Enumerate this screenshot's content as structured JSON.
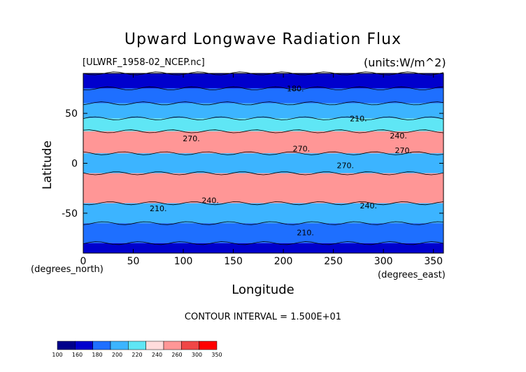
{
  "chart_data": {
    "type": "heatmap",
    "title": "Upward Longwave Radiation Flux",
    "subtitle_left": "[ULWRF_1958-02_NCEP.nc]",
    "subtitle_right": "(units:W/m^2)",
    "xlabel": "Longitude",
    "ylabel": "Latitude",
    "x_unit_label": "(degrees_east)",
    "y_unit_label": "(degrees_north)",
    "xlim": [
      0,
      360
    ],
    "ylim": [
      -90,
      90
    ],
    "x_ticks": [
      0,
      50,
      100,
      150,
      200,
      250,
      300,
      350
    ],
    "y_ticks": [
      50,
      0,
      -50
    ],
    "contour_interval_text": "CONTOUR INTERVAL = 1.500E+01",
    "colorbar": {
      "levels": [
        100,
        160,
        180,
        200,
        220,
        240,
        260,
        300,
        350
      ],
      "colors": [
        "#00008b",
        "#0000cd",
        "#1e6fff",
        "#3cb4ff",
        "#5fe6f5",
        "#ffdcdc",
        "#ff9696",
        "#f04646",
        "#ff0000"
      ]
    },
    "contour_labels": [
      {
        "text": "180.",
        "lon": 212,
        "lat": 72
      },
      {
        "text": "210.",
        "lon": 275,
        "lat": 42
      },
      {
        "text": "240.",
        "lon": 315,
        "lat": 25
      },
      {
        "text": "270.",
        "lon": 108,
        "lat": 22
      },
      {
        "text": "270.",
        "lon": 218,
        "lat": 12
      },
      {
        "text": "270.",
        "lon": 320,
        "lat": 10
      },
      {
        "text": "270.",
        "lon": 262,
        "lat": -5
      },
      {
        "text": "240.",
        "lon": 127,
        "lat": -40
      },
      {
        "text": "240.",
        "lon": 285,
        "lat": -45
      },
      {
        "text": "210.",
        "lon": 75,
        "lat": -48
      },
      {
        "text": "210.",
        "lon": 222,
        "lat": -72
      }
    ],
    "bands": [
      {
        "lat": [
          90,
          75
        ],
        "value": 170
      },
      {
        "lat": [
          75,
          60
        ],
        "value": 195
      },
      {
        "lat": [
          60,
          45
        ],
        "value": 210
      },
      {
        "lat": [
          45,
          32
        ],
        "value": 230
      },
      {
        "lat": [
          32,
          10
        ],
        "value": 275
      },
      {
        "lat": [
          10,
          -10
        ],
        "value": 215
      },
      {
        "lat": [
          -10,
          -40
        ],
        "value": 270
      },
      {
        "lat": [
          -40,
          -60
        ],
        "value": 205
      },
      {
        "lat": [
          -60,
          -80
        ],
        "value": 190
      },
      {
        "lat": [
          -80,
          -90
        ],
        "value": 160
      }
    ]
  }
}
